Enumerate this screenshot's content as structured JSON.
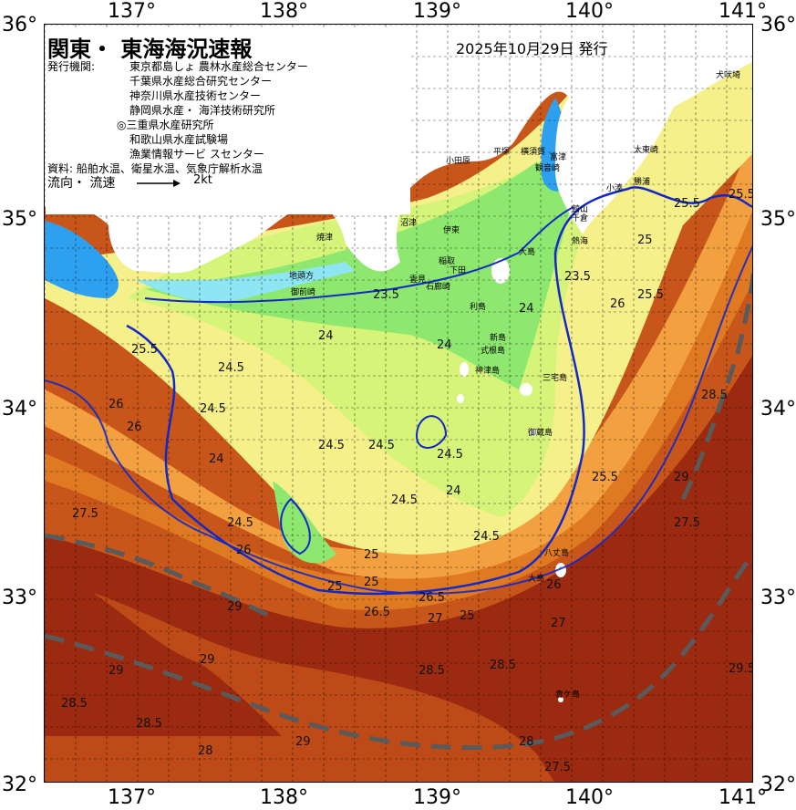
{
  "map": {
    "title": "関東・ 東海海況速報",
    "issue_date": "2025年10月29日 発行",
    "issuer_label": "発行機関:",
    "issuers": [
      "東京都島しょ 農林水産総合センター",
      "千葉県水産総合研究センター",
      "神奈川県水産技術センター",
      "静岡県水産・ 海洋技術研究所",
      "◎三重県水産研究所",
      "和歌山県水産試験場",
      "漁業情報サービ スセンター"
    ],
    "source_text": "資料: 船舶水温、衛星水温、気象庁解析水温",
    "flow_label": "流向・ 流速",
    "scale_label": "2kt",
    "lon_labels": [
      "137°",
      "138°",
      "139°",
      "140°",
      "141°"
    ],
    "lat_labels": [
      "36°",
      "35°",
      "34°",
      "33°",
      "32°"
    ],
    "colors": {
      "land": "#ffffff",
      "temp_23": "#2ea0f0",
      "temp_23_5": "#8ee6f4",
      "temp_24": "#8ee870",
      "temp_24_5": "#d6f47a",
      "temp_25": "#f6f08a",
      "temp_25_5": "#f6cc60",
      "temp_26": "#f2a040",
      "temp_27": "#e07a22",
      "temp_28": "#c8561a",
      "temp_29": "#9c2a10",
      "temp_29_5": "#7a1606",
      "isotherm_main": "#1428c8",
      "isotherm_minor": "#5a5ac8",
      "kuroshio_axis": "#5a5a5a"
    },
    "place_names": [
      "犬吠埼",
      "太東崎",
      "勝浦",
      "小湊",
      "千倉",
      "館山",
      "富津",
      "横須賀",
      "観音崎",
      "平塚",
      "小田原",
      "熱海",
      "伊東",
      "稲取",
      "下田",
      "石廊崎",
      "雲見",
      "沼津",
      "焼津",
      "地頭方",
      "御前崎",
      "大島",
      "利島",
      "新島",
      "式根島",
      "神津島",
      "三宅島",
      "御蔵島",
      "八丈島",
      "青ケ島",
      "大島"
    ],
    "isotherm_labels": [
      "23.5",
      "24",
      "24.5",
      "25",
      "25.5",
      "26",
      "26.5",
      "27",
      "27.5",
      "28",
      "28.5",
      "29",
      "29.5"
    ]
  }
}
